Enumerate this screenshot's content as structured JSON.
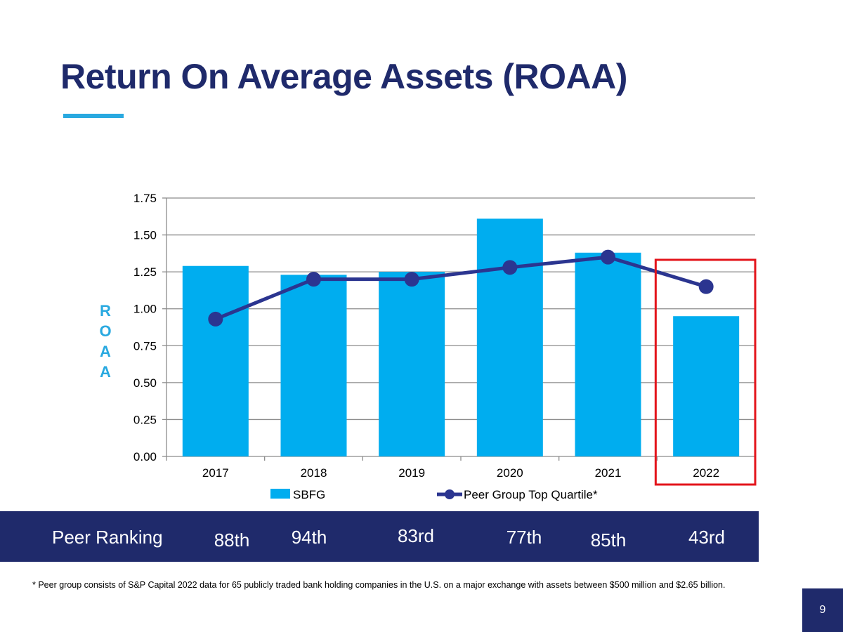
{
  "title": "Return On Average Assets (ROAA)",
  "colors": {
    "bar": "#00adef",
    "line": "#2b3590",
    "highlight": "#e3141b",
    "navy": "#1f2a6b",
    "accent": "#29a9e0"
  },
  "chart_data": {
    "type": "bar",
    "categories": [
      "2017",
      "2018",
      "2019",
      "2020",
      "2021",
      "2022"
    ],
    "series": [
      {
        "name": "SBFG",
        "type": "bar",
        "values": [
          1.29,
          1.23,
          1.25,
          1.61,
          1.38,
          0.95
        ]
      },
      {
        "name": "Peer Group Top Quartile*",
        "type": "line",
        "values": [
          0.93,
          1.2,
          1.2,
          1.28,
          1.35,
          1.15
        ]
      }
    ],
    "yticks": [
      "0.00",
      "0.25",
      "0.50",
      "0.75",
      "1.00",
      "1.25",
      "1.50",
      "1.75"
    ],
    "ylim": [
      0,
      1.75
    ],
    "ylabel": "ROAA",
    "ylabel_letters": [
      "R",
      "O",
      "A",
      "A"
    ],
    "highlight_category": "2022",
    "legend_position": "bottom"
  },
  "peer_ranking": {
    "label": "Peer Ranking",
    "values": [
      "88th",
      "94th",
      "83rd",
      "77th",
      "85th",
      "43rd"
    ]
  },
  "footnote": "* Peer group consists of S&P Capital 2022 data for 65 publicly traded bank holding companies in the U.S. on a major exchange with assets between $500 million and $2.65 billion.",
  "page_number": "9"
}
